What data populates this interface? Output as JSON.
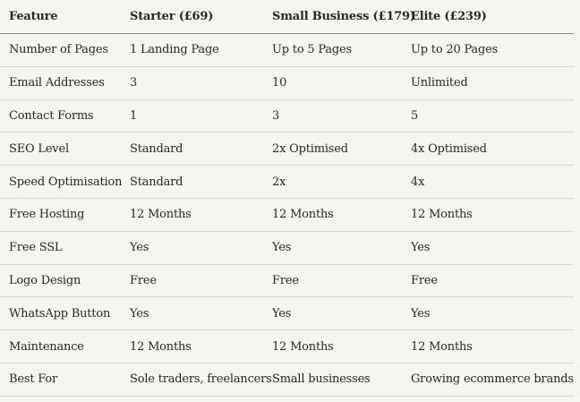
{
  "table": {
    "headers": [
      "Feature",
      "Starter (£69)",
      "Small Business (£179)",
      "Elite (£239)"
    ],
    "rows": [
      [
        "Number of Pages",
        "1 Landing Page",
        "Up to 5 Pages",
        "Up to 20 Pages"
      ],
      [
        "Email Addresses",
        "3",
        "10",
        "Unlimited"
      ],
      [
        "Contact Forms",
        "1",
        "3",
        "5"
      ],
      [
        "SEO Level",
        "Standard",
        "2x Optimised",
        "4x Optimised"
      ],
      [
        "Speed Optimisation",
        "Standard",
        "2x",
        "4x"
      ],
      [
        "Free Hosting",
        "12 Months",
        "12 Months",
        "12 Months"
      ],
      [
        "Free SSL",
        "Yes",
        "Yes",
        "Yes"
      ],
      [
        "Logo Design",
        "Free",
        "Free",
        "Free"
      ],
      [
        "WhatsApp Button",
        "Yes",
        "Yes",
        "Yes"
      ],
      [
        "Maintenance",
        "12 Months",
        "12 Months",
        "12 Months"
      ],
      [
        "Best For",
        "Sole traders, freelancers",
        "Small businesses",
        "Growing ecommerce brands"
      ]
    ]
  }
}
